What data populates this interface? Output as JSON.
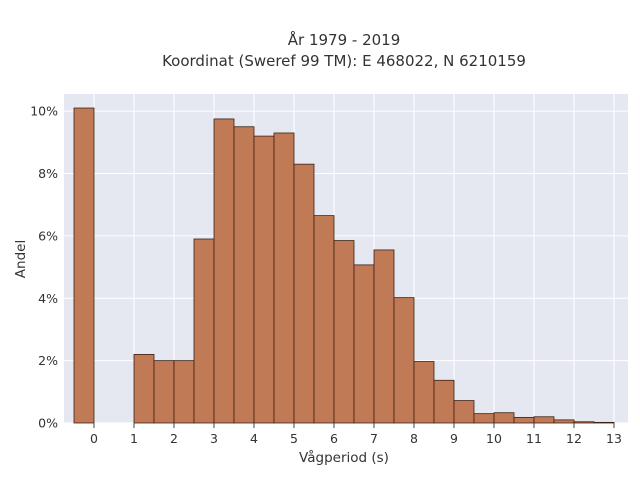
{
  "chart_data": {
    "type": "bar",
    "title": "År 1979 - 2019",
    "subtitle": "Koordinat (Sweref 99 TM): E 468022, N 6210159",
    "xlabel": "Vågperiod (s)",
    "ylabel": "Andel",
    "bin_width": 0.5,
    "bin_starts": [
      -0.5,
      1.0,
      1.5,
      2.0,
      2.5,
      3.0,
      3.5,
      4.0,
      4.5,
      5.0,
      5.5,
      6.0,
      6.5,
      7.0,
      7.5,
      8.0,
      8.5,
      9.0,
      9.5,
      10.0,
      10.5,
      11.0,
      11.5,
      12.0,
      12.5
    ],
    "values": [
      10.1,
      2.2,
      2.0,
      2.0,
      5.9,
      9.75,
      9.5,
      9.2,
      9.3,
      8.3,
      6.65,
      5.85,
      5.07,
      5.55,
      4.02,
      1.97,
      1.37,
      0.72,
      0.3,
      0.33,
      0.18,
      0.2,
      0.1,
      0.04,
      0.02
    ],
    "xlim": [
      -0.75,
      13.35
    ],
    "ylim": [
      0,
      10.55
    ],
    "x_ticks": [
      "0",
      "1",
      "2",
      "3",
      "4",
      "5",
      "6",
      "7",
      "8",
      "9",
      "10",
      "11",
      "12",
      "13"
    ],
    "y_ticks": [
      "0%",
      "2%",
      "4%",
      "6%",
      "8%",
      "10%"
    ],
    "y_tick_values": [
      0,
      2,
      4,
      6,
      8,
      10
    ],
    "bar_color": "#c07a56",
    "bar_edge_color": "#3b2216",
    "plot_background": "#e5e8f1",
    "grid": true
  }
}
